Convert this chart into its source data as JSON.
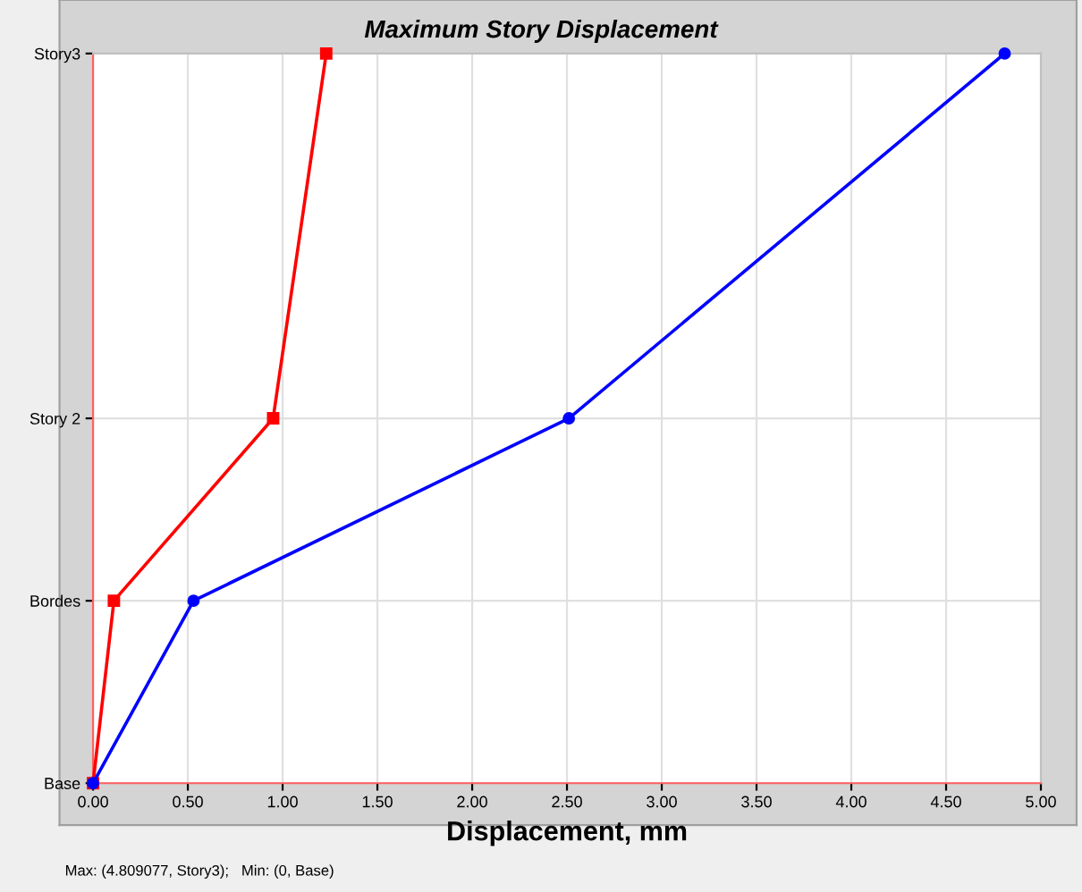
{
  "chart_data": {
    "type": "line",
    "orientation": "horizontal",
    "title": "Maximum Story Displacement",
    "xlabel": "Displacement, mm",
    "xlim": [
      0,
      5
    ],
    "xticks": [
      {
        "value": 0,
        "label": "0.00"
      },
      {
        "value": 0.5,
        "label": "0.50"
      },
      {
        "value": 1,
        "label": "1.00"
      },
      {
        "value": 1.5,
        "label": "1.50"
      },
      {
        "value": 2,
        "label": "2.00"
      },
      {
        "value": 2.5,
        "label": "2.50"
      },
      {
        "value": 3,
        "label": "3.00"
      },
      {
        "value": 3.5,
        "label": "3.50"
      },
      {
        "value": 4,
        "label": "4.00"
      },
      {
        "value": 4.5,
        "label": "4.50"
      },
      {
        "value": 5,
        "label": "5.00"
      }
    ],
    "categories": [
      "Story3",
      null,
      "Story 2",
      "Bordes",
      "Base"
    ],
    "grid": true,
    "legend": false,
    "line_style": "solid",
    "series": [
      {
        "color": "#ff0000",
        "marker": "square",
        "values": [
          1.23,
          null,
          0.95,
          0.11,
          0
        ]
      },
      {
        "color": "#0000ff",
        "marker": "circle",
        "values": [
          4.809077,
          null,
          2.51,
          0.53,
          0
        ]
      }
    ],
    "annotations": [
      "Max: (4.809077, Story3);   Min: (0, Base)"
    ]
  }
}
